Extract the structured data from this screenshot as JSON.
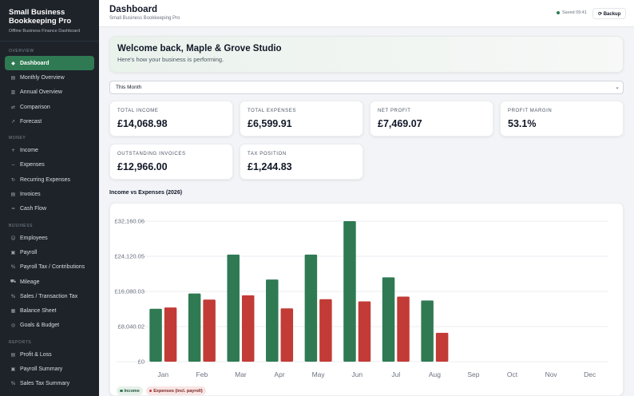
{
  "app": {
    "title": "Small Business Bookkeeping Pro",
    "subtitle": "Offline Business Finance Dashboard"
  },
  "sidebar": {
    "sections": [
      {
        "title": "OVERVIEW",
        "items": [
          {
            "label": "Dashboard",
            "icon": "◆",
            "active": true
          },
          {
            "label": "Monthly Overview",
            "icon": "▤"
          },
          {
            "label": "Annual Overview",
            "icon": "▥"
          },
          {
            "label": "Comparison",
            "icon": "⇄"
          },
          {
            "label": "Forecast",
            "icon": "↗"
          }
        ]
      },
      {
        "title": "MONEY",
        "items": [
          {
            "label": "Income",
            "icon": "+"
          },
          {
            "label": "Expenses",
            "icon": "−"
          },
          {
            "label": "Recurring Expenses",
            "icon": "↻"
          },
          {
            "label": "Invoices",
            "icon": "▤"
          },
          {
            "label": "Cash Flow",
            "icon": "≈"
          }
        ]
      },
      {
        "title": "BUSINESS",
        "items": [
          {
            "label": "Employees",
            "icon": "☺"
          },
          {
            "label": "Payroll",
            "icon": "▣"
          },
          {
            "label": "Payroll Tax / Contributions",
            "icon": "%"
          },
          {
            "label": "Mileage",
            "icon": "⛟"
          },
          {
            "label": "Sales / Transaction Tax",
            "icon": "%"
          },
          {
            "label": "Balance Sheet",
            "icon": "▦"
          },
          {
            "label": "Goals & Budget",
            "icon": "◎"
          }
        ]
      },
      {
        "title": "REPORTS",
        "items": [
          {
            "label": "Profit & Loss",
            "icon": "▤"
          },
          {
            "label": "Payroll Summary",
            "icon": "▣"
          },
          {
            "label": "Sales Tax Summary",
            "icon": "%"
          },
          {
            "label": "Mileage Report",
            "icon": "⛟"
          }
        ]
      }
    ]
  },
  "header": {
    "title": "Dashboard",
    "subtitle": "Small Business Bookkeeping Pro",
    "saved": "Saved 09:41",
    "backup_label": "⟳ Backup"
  },
  "welcome": {
    "title": "Welcome back, Maple & Grove Studio",
    "message": "Here's how your business is performing."
  },
  "period": {
    "selected": "This Month"
  },
  "kpis": [
    {
      "label": "TOTAL INCOME",
      "value": "£14,068.98"
    },
    {
      "label": "TOTAL EXPENSES",
      "value": "£6,599.91"
    },
    {
      "label": "NET PROFIT",
      "value": "£7,469.07"
    },
    {
      "label": "PROFIT MARGIN",
      "value": "53.1%"
    },
    {
      "label": "OUTSTANDING INVOICES",
      "value": "£12,966.00"
    },
    {
      "label": "TAX POSITION",
      "value": "£1,244.83"
    }
  ],
  "colors": {
    "income": "#2f7a53",
    "expenses": "#c23b36",
    "accent": "#2f7a53",
    "sidebar_bg": "#1e2329"
  },
  "chart_data": {
    "type": "bar",
    "title": "Income vs Expenses (2026)",
    "categories": [
      "Jan",
      "Feb",
      "Mar",
      "Apr",
      "May",
      "Jun",
      "Jul",
      "Aug",
      "Sep",
      "Oct",
      "Nov",
      "Dec"
    ],
    "series": [
      {
        "name": "Income",
        "values": [
          12100,
          15600,
          24500,
          18800,
          24500,
          32160,
          19300,
          14000,
          0,
          0,
          0,
          0
        ]
      },
      {
        "name": "Expenses (incl. payroll)",
        "values": [
          12400,
          14200,
          15200,
          12200,
          14300,
          13800,
          14900,
          6600,
          0,
          0,
          0,
          0
        ]
      }
    ],
    "ylim": [
      0,
      32160.06
    ],
    "yticks": [
      "£0",
      "£8,040.02",
      "£16,080.03",
      "£24,120.05",
      "£32,160.06"
    ],
    "grid": true,
    "legend": "bottom-left"
  }
}
